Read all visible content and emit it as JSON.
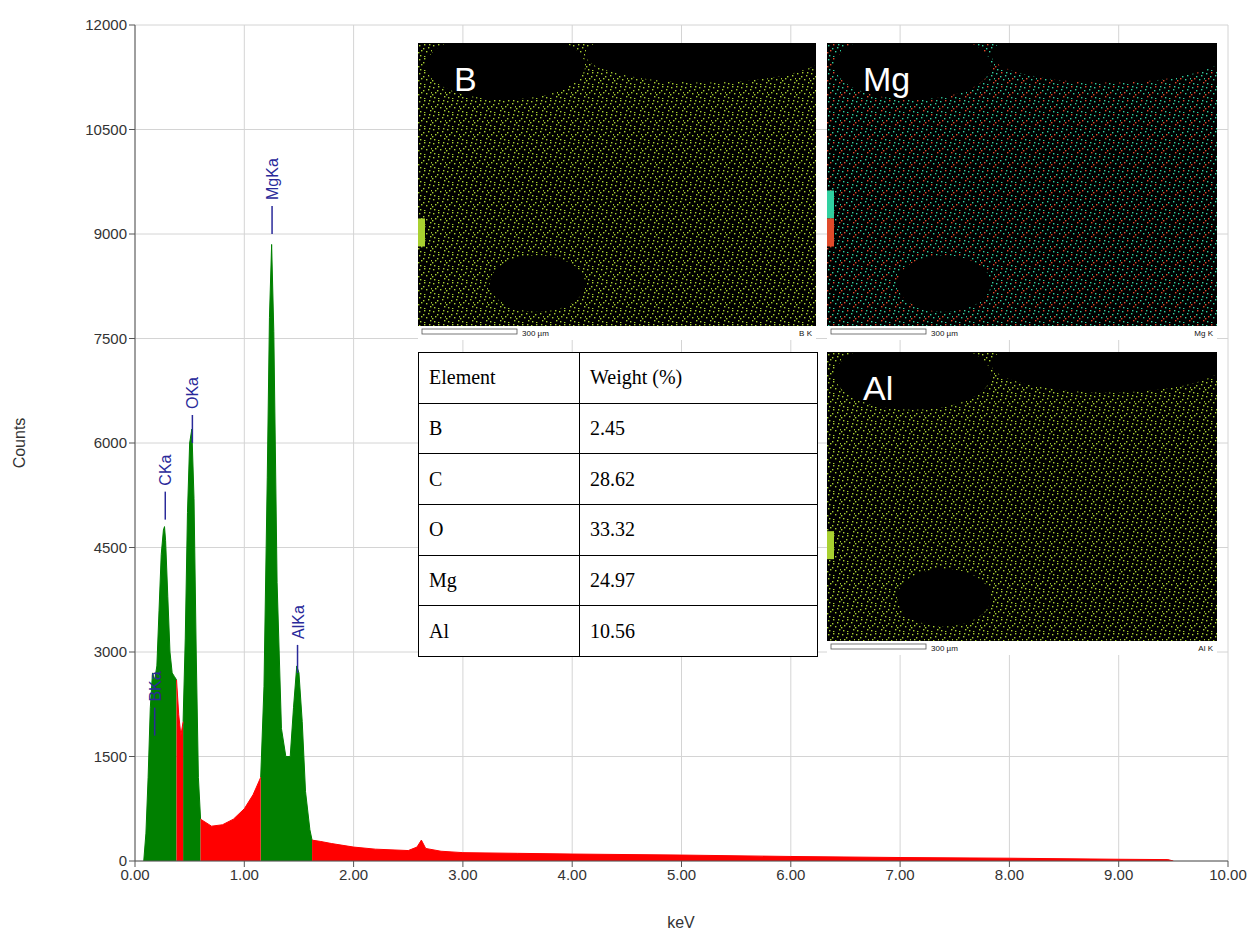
{
  "chart_data": {
    "type": "area",
    "x_label": "keV",
    "y_label": "Counts",
    "x": [
      0.08,
      0.1,
      0.12,
      0.14,
      0.16,
      0.18,
      0.2,
      0.22,
      0.24,
      0.26,
      0.27,
      0.28,
      0.3,
      0.32,
      0.34,
      0.36,
      0.38,
      0.4,
      0.42,
      0.44,
      0.46,
      0.48,
      0.5,
      0.52,
      0.54,
      0.56,
      0.58,
      0.6,
      0.7,
      0.8,
      0.9,
      1.0,
      1.08,
      1.15,
      1.18,
      1.21,
      1.23,
      1.25,
      1.27,
      1.3,
      1.34,
      1.38,
      1.42,
      1.45,
      1.48,
      1.5,
      1.53,
      1.56,
      1.6,
      1.62,
      1.7,
      1.8,
      2.0,
      2.2,
      2.5,
      2.58,
      2.62,
      2.66,
      2.8,
      3.0,
      3.5,
      4.0,
      5.0,
      6.0,
      7.0,
      8.0,
      9.0,
      9.45,
      9.5
    ],
    "series": [
      {
        "color": "#008000",
        "values": [
          0,
          400,
          1200,
          2200,
          2700,
          2600,
          2800,
          3600,
          4400,
          4750,
          4800,
          4600,
          3800,
          3000,
          2700,
          2650,
          2600,
          null,
          null,
          2000,
          3200,
          5000,
          6000,
          6200,
          5200,
          3000,
          1200,
          600,
          null,
          null,
          null,
          null,
          null,
          1200,
          2500,
          5500,
          7800,
          8850,
          7600,
          4000,
          1900,
          1500,
          1500,
          2200,
          2800,
          2700,
          2000,
          1000,
          450,
          300,
          null,
          null,
          null,
          null,
          null,
          null,
          null,
          null,
          null,
          null,
          null,
          null,
          null,
          null,
          null,
          null,
          null,
          null,
          null
        ]
      },
      {
        "color": "#ff0000",
        "values": [
          null,
          null,
          null,
          null,
          null,
          null,
          null,
          null,
          null,
          null,
          null,
          null,
          null,
          null,
          null,
          null,
          2600,
          2100,
          1800,
          2000,
          null,
          null,
          null,
          null,
          null,
          null,
          null,
          600,
          500,
          520,
          600,
          750,
          950,
          1200,
          null,
          null,
          null,
          null,
          null,
          null,
          null,
          null,
          null,
          null,
          null,
          null,
          null,
          null,
          null,
          300,
          280,
          250,
          200,
          170,
          150,
          200,
          300,
          180,
          140,
          120,
          110,
          100,
          85,
          65,
          50,
          40,
          25,
          20,
          0
        ]
      }
    ],
    "xlim": [
      0,
      10
    ],
    "xticks": [
      {
        "value": 0,
        "label": "0.00"
      },
      {
        "value": 1,
        "label": "1.00"
      },
      {
        "value": 2,
        "label": "2.00"
      },
      {
        "value": 3,
        "label": "3.00"
      },
      {
        "value": 4,
        "label": "4.00"
      },
      {
        "value": 5,
        "label": "5.00"
      },
      {
        "value": 6,
        "label": "6.00"
      },
      {
        "value": 7,
        "label": "7.00"
      },
      {
        "value": 8,
        "label": "8.00"
      },
      {
        "value": 9,
        "label": "9.00"
      },
      {
        "value": 10,
        "label": "10.00"
      }
    ],
    "ylim": [
      0,
      12000
    ],
    "yticks": [
      0,
      1500,
      3000,
      4500,
      6000,
      7500,
      9000,
      10500,
      12000
    ],
    "grid": true,
    "annotations": [
      {
        "text": "BKa",
        "x": 0.18,
        "y": 1800
      },
      {
        "text": "CKa",
        "x": 0.277,
        "y": 4900
      },
      {
        "text": "OKa",
        "x": 0.525,
        "y": 6000
      },
      {
        "text": "MgKa",
        "x": 1.254,
        "y": 9000
      },
      {
        "text": "AlKa",
        "x": 1.487,
        "y": 2700
      }
    ],
    "color": "#2a2a9a"
  },
  "maps": [
    {
      "label": "B",
      "footer": "B K",
      "scale_bar": "300 µm",
      "colors": [
        "#a8d030"
      ]
    },
    {
      "label": "Mg",
      "footer": "Mg K",
      "scale_bar": "300 µm",
      "colors": [
        "#30d0a0",
        "#e04a2a"
      ]
    },
    {
      "label": "Al",
      "footer": "Al K",
      "scale_bar": "300 µm",
      "colors": [
        "#a8d030"
      ]
    }
  ],
  "table": {
    "header": [
      "Element",
      "Weight (%)"
    ],
    "rows": [
      [
        "B",
        2.45
      ],
      [
        "C",
        28.62
      ],
      [
        "O",
        33.32
      ],
      [
        "Mg",
        24.97
      ],
      [
        "Al",
        10.56
      ]
    ]
  }
}
